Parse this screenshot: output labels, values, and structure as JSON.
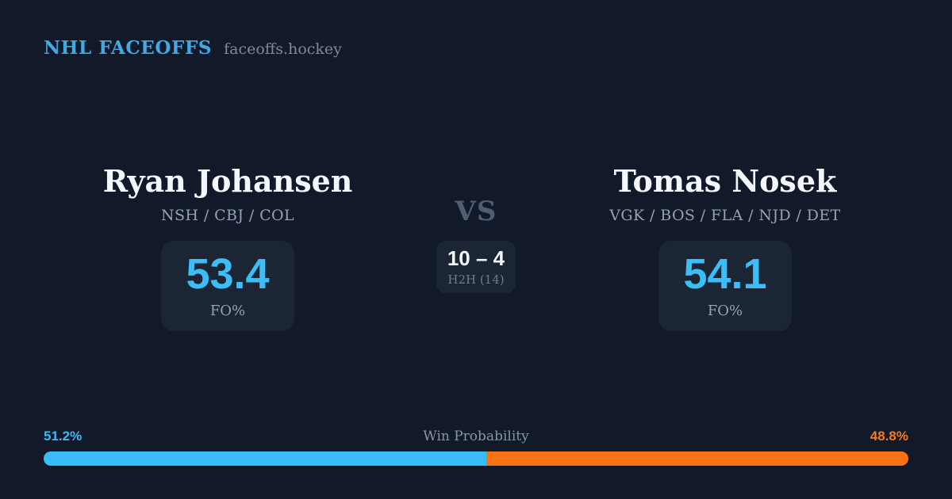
{
  "header": {
    "brand": "NHL FACEOFFS",
    "site": "faceoffs.hockey"
  },
  "players": {
    "left": {
      "name": "Ryan Johansen",
      "teams": "NSH / CBJ / COL",
      "fo_pct": "53.4",
      "fo_label": "FO%"
    },
    "right": {
      "name": "Tomas Nosek",
      "teams": "VGK / BOS / FLA / NJD / DET",
      "fo_pct": "54.1",
      "fo_label": "FO%"
    }
  },
  "versus": {
    "label": "VS",
    "h2h_score": "10 – 4",
    "h2h_label": "H2H (14)"
  },
  "win_probability": {
    "title": "Win Probability",
    "left_label": "51.2%",
    "right_label": "48.8%",
    "left_value": 51.2,
    "right_value": 48.8
  },
  "colors": {
    "background": "#121a29",
    "panel": "#1c2534",
    "accent_blue": "#38bdf8",
    "accent_orange": "#f97316",
    "brand_blue": "#41a9e3",
    "text_primary": "#f3f6fa",
    "text_muted": "#93a1b8"
  },
  "chart_data": {
    "type": "bar",
    "title": "Win Probability",
    "categories": [
      "Ryan Johansen",
      "Tomas Nosek"
    ],
    "series": [
      {
        "name": "Win Probability %",
        "values": [
          51.2,
          48.8
        ]
      },
      {
        "name": "Faceoff Win % (FO%)",
        "values": [
          53.4,
          54.1
        ]
      },
      {
        "name": "Head-to-head wins (14 faceoffs)",
        "values": [
          10,
          4
        ]
      }
    ],
    "legend_position": "none",
    "xlabel": "",
    "ylabel": "",
    "ylim": [
      0,
      100
    ],
    "annotations": [
      "10 – 4 H2H (14)",
      "51.2% vs 48.8%"
    ]
  }
}
